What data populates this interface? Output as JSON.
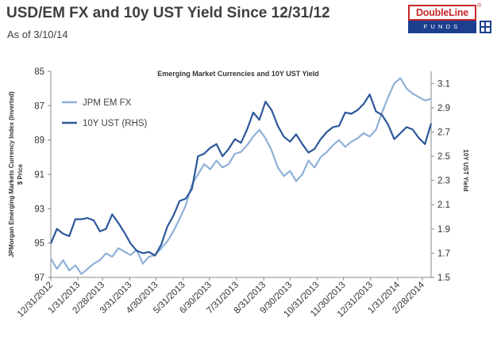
{
  "page": {
    "title": "USD/EM FX and 10y UST Yield Since 12/31/12",
    "subtitle": "As of 3/10/14"
  },
  "logo": {
    "top_text": "DoubleLine",
    "registered": "®",
    "bottom_text": "FUNDS",
    "colors": {
      "red": "#c8282d",
      "blue": "#1e3f8f"
    }
  },
  "chart_data": {
    "type": "line",
    "title": "Emerging Market Currencies and 10Y UST Yield",
    "ylabel_left": [
      "JPMorgan Emerging Markets Currency Index (Inverted)",
      "$ Price"
    ],
    "ylabel_right": "10Y UST Yield",
    "left_axis": {
      "min": 85,
      "max": 97,
      "inverted": true,
      "ticks": [
        "85",
        "87",
        "89",
        "91",
        "93",
        "95",
        "97"
      ]
    },
    "right_axis": {
      "min": 1.5,
      "max": 3.2,
      "ticks": [
        "3.1",
        "2.9",
        "2.7",
        "2.5",
        "2.3",
        "2.1",
        "1.9",
        "1.7",
        "1.5"
      ]
    },
    "x_tick_labels": [
      "12/31/2012",
      "1/31/2013",
      "2/28/2013",
      "3/31/2013",
      "4/30/2013",
      "5/31/2013",
      "6/30/2013",
      "7/31/2013",
      "8/31/2013",
      "9/30/2013",
      "10/31/2013",
      "11/30/2013",
      "12/31/2013",
      "1/31/2014",
      "2/28/2014"
    ],
    "x_range": [
      "2012-12-31",
      "2014-03-10"
    ],
    "grid": false,
    "legend_position": "top-left",
    "series": [
      {
        "name": "JPM EM FX",
        "axis": "left",
        "color": "#8fb0d8",
        "points": [
          [
            "2012-12-31",
            95.9
          ],
          [
            "2013-01-07",
            96.5
          ],
          [
            "2013-01-14",
            96.0
          ],
          [
            "2013-01-21",
            96.6
          ],
          [
            "2013-01-28",
            96.3
          ],
          [
            "2013-02-04",
            96.8
          ],
          [
            "2013-02-11",
            96.5
          ],
          [
            "2013-02-18",
            96.2
          ],
          [
            "2013-02-25",
            96.0
          ],
          [
            "2013-03-04",
            95.6
          ],
          [
            "2013-03-11",
            95.8
          ],
          [
            "2013-03-18",
            95.3
          ],
          [
            "2013-03-25",
            95.5
          ],
          [
            "2013-04-01",
            95.7
          ],
          [
            "2013-04-08",
            95.4
          ],
          [
            "2013-04-15",
            96.2
          ],
          [
            "2013-04-22",
            95.8
          ],
          [
            "2013-04-29",
            95.7
          ],
          [
            "2013-05-06",
            95.3
          ],
          [
            "2013-05-13",
            94.9
          ],
          [
            "2013-05-20",
            94.3
          ],
          [
            "2013-05-27",
            93.6
          ],
          [
            "2013-06-03",
            92.8
          ],
          [
            "2013-06-10",
            91.6
          ],
          [
            "2013-06-17",
            91.0
          ],
          [
            "2013-06-24",
            90.4
          ],
          [
            "2013-07-01",
            90.7
          ],
          [
            "2013-07-08",
            90.2
          ],
          [
            "2013-07-15",
            90.6
          ],
          [
            "2013-07-22",
            90.4
          ],
          [
            "2013-07-29",
            89.8
          ],
          [
            "2013-08-05",
            89.7
          ],
          [
            "2013-08-12",
            89.3
          ],
          [
            "2013-08-19",
            88.8
          ],
          [
            "2013-08-26",
            88.4
          ],
          [
            "2013-09-02",
            88.9
          ],
          [
            "2013-09-09",
            89.6
          ],
          [
            "2013-09-16",
            90.6
          ],
          [
            "2013-09-23",
            91.1
          ],
          [
            "2013-09-30",
            90.8
          ],
          [
            "2013-10-07",
            91.4
          ],
          [
            "2013-10-14",
            91.0
          ],
          [
            "2013-10-21",
            90.2
          ],
          [
            "2013-10-28",
            90.6
          ],
          [
            "2013-11-04",
            90.0
          ],
          [
            "2013-11-11",
            89.7
          ],
          [
            "2013-11-18",
            89.3
          ],
          [
            "2013-11-25",
            89.0
          ],
          [
            "2013-12-02",
            89.4
          ],
          [
            "2013-12-09",
            89.1
          ],
          [
            "2013-12-16",
            88.9
          ],
          [
            "2013-12-23",
            88.6
          ],
          [
            "2013-12-30",
            88.8
          ],
          [
            "2014-01-06",
            88.4
          ],
          [
            "2014-01-13",
            87.4
          ],
          [
            "2014-01-20",
            86.5
          ],
          [
            "2014-01-27",
            85.7
          ],
          [
            "2014-02-03",
            85.4
          ],
          [
            "2014-02-10",
            86.0
          ],
          [
            "2014-02-17",
            86.3
          ],
          [
            "2014-02-24",
            86.5
          ],
          [
            "2014-03-03",
            86.7
          ],
          [
            "2014-03-10",
            86.6
          ]
        ]
      },
      {
        "name": "10Y UST (RHS)",
        "axis": "right",
        "color": "#2c5799",
        "points": [
          [
            "2012-12-31",
            1.78
          ],
          [
            "2013-01-07",
            1.9
          ],
          [
            "2013-01-14",
            1.86
          ],
          [
            "2013-01-21",
            1.84
          ],
          [
            "2013-01-28",
            1.98
          ],
          [
            "2013-02-04",
            1.98
          ],
          [
            "2013-02-11",
            1.99
          ],
          [
            "2013-02-18",
            1.97
          ],
          [
            "2013-02-25",
            1.88
          ],
          [
            "2013-03-04",
            1.9
          ],
          [
            "2013-03-11",
            2.02
          ],
          [
            "2013-03-18",
            1.95
          ],
          [
            "2013-03-25",
            1.87
          ],
          [
            "2013-04-01",
            1.78
          ],
          [
            "2013-04-08",
            1.72
          ],
          [
            "2013-04-15",
            1.7
          ],
          [
            "2013-04-22",
            1.71
          ],
          [
            "2013-04-29",
            1.68
          ],
          [
            "2013-05-06",
            1.77
          ],
          [
            "2013-05-13",
            1.92
          ],
          [
            "2013-05-20",
            2.01
          ],
          [
            "2013-05-27",
            2.13
          ],
          [
            "2013-06-03",
            2.15
          ],
          [
            "2013-06-10",
            2.23
          ],
          [
            "2013-06-17",
            2.5
          ],
          [
            "2013-06-24",
            2.52
          ],
          [
            "2013-07-01",
            2.57
          ],
          [
            "2013-07-08",
            2.6
          ],
          [
            "2013-07-15",
            2.5
          ],
          [
            "2013-07-22",
            2.56
          ],
          [
            "2013-07-29",
            2.64
          ],
          [
            "2013-08-05",
            2.61
          ],
          [
            "2013-08-12",
            2.72
          ],
          [
            "2013-08-19",
            2.86
          ],
          [
            "2013-08-26",
            2.8
          ],
          [
            "2013-09-02",
            2.95
          ],
          [
            "2013-09-09",
            2.88
          ],
          [
            "2013-09-16",
            2.75
          ],
          [
            "2013-09-23",
            2.66
          ],
          [
            "2013-09-30",
            2.62
          ],
          [
            "2013-10-07",
            2.68
          ],
          [
            "2013-10-14",
            2.6
          ],
          [
            "2013-10-21",
            2.53
          ],
          [
            "2013-10-28",
            2.56
          ],
          [
            "2013-11-04",
            2.64
          ],
          [
            "2013-11-11",
            2.7
          ],
          [
            "2013-11-18",
            2.74
          ],
          [
            "2013-11-25",
            2.75
          ],
          [
            "2013-12-02",
            2.86
          ],
          [
            "2013-12-09",
            2.85
          ],
          [
            "2013-12-16",
            2.88
          ],
          [
            "2013-12-23",
            2.93
          ],
          [
            "2013-12-30",
            3.01
          ],
          [
            "2014-01-06",
            2.87
          ],
          [
            "2014-01-13",
            2.84
          ],
          [
            "2014-01-20",
            2.76
          ],
          [
            "2014-01-27",
            2.64
          ],
          [
            "2014-02-03",
            2.69
          ],
          [
            "2014-02-10",
            2.74
          ],
          [
            "2014-02-17",
            2.72
          ],
          [
            "2014-02-24",
            2.65
          ],
          [
            "2014-03-03",
            2.6
          ],
          [
            "2014-03-10",
            2.77
          ]
        ]
      }
    ]
  }
}
